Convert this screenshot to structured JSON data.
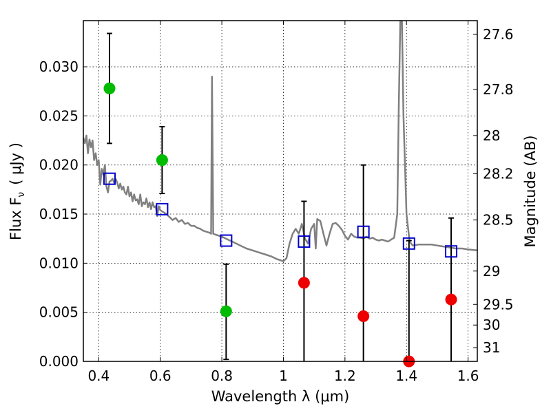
{
  "chart_data": {
    "type": "scatter",
    "xlabel": "Wavelength  λ (μm)",
    "ylabel": "Flux  F",
    "ylabel_subscript": "ν",
    "ylabel_unit": "( μJy )",
    "ylabel_right": "Magnitude (AB)",
    "xlim": [
      0.35,
      1.63
    ],
    "ylim": [
      0.0,
      0.0347
    ],
    "grid": true,
    "x_ticks": [
      {
        "value": 0.4,
        "label": "0.4"
      },
      {
        "value": 0.6,
        "label": "0.6"
      },
      {
        "value": 0.8,
        "label": "0.8"
      },
      {
        "value": 1.0,
        "label": "1"
      },
      {
        "value": 1.2,
        "label": "1.2"
      },
      {
        "value": 1.4,
        "label": "1.4"
      },
      {
        "value": 1.6,
        "label": "1.6"
      }
    ],
    "y_ticks": [
      {
        "value": 0.0,
        "label": "0.000"
      },
      {
        "value": 0.005,
        "label": "0.005"
      },
      {
        "value": 0.01,
        "label": "0.010"
      },
      {
        "value": 0.015,
        "label": "0.015"
      },
      {
        "value": 0.02,
        "label": "0.020"
      },
      {
        "value": 0.025,
        "label": "0.025"
      },
      {
        "value": 0.03,
        "label": "0.030"
      }
    ],
    "right_ticks": [
      {
        "flux": 0.0333,
        "label": "27.6"
      },
      {
        "flux": 0.0277,
        "label": "27.8"
      },
      {
        "flux": 0.023,
        "label": "28"
      },
      {
        "flux": 0.0191,
        "label": "28.2"
      },
      {
        "flux": 0.0144,
        "label": "28.5"
      },
      {
        "flux": 0.0092,
        "label": "29"
      },
      {
        "flux": 0.0058,
        "label": "29.5"
      },
      {
        "flux": 0.0037,
        "label": "30"
      },
      {
        "flux": 0.0014,
        "label": "31"
      }
    ],
    "series": [
      {
        "kind": "model_spectrum",
        "color": "#808080",
        "points": [
          [
            0.35,
            0.0228
          ],
          [
            0.355,
            0.0222
          ],
          [
            0.36,
            0.023
          ],
          [
            0.365,
            0.0212
          ],
          [
            0.37,
            0.0226
          ],
          [
            0.375,
            0.0218
          ],
          [
            0.38,
            0.0225
          ],
          [
            0.385,
            0.0205
          ],
          [
            0.39,
            0.0212
          ],
          [
            0.395,
            0.02
          ],
          [
            0.4,
            0.0205
          ],
          [
            0.405,
            0.018
          ],
          [
            0.41,
            0.0196
          ],
          [
            0.415,
            0.019
          ],
          [
            0.42,
            0.02
          ],
          [
            0.425,
            0.0178
          ],
          [
            0.43,
            0.0172
          ],
          [
            0.435,
            0.0183
          ],
          [
            0.44,
            0.0184
          ],
          [
            0.445,
            0.0186
          ],
          [
            0.45,
            0.0182
          ],
          [
            0.455,
            0.0186
          ],
          [
            0.46,
            0.0182
          ],
          [
            0.465,
            0.0176
          ],
          [
            0.47,
            0.0181
          ],
          [
            0.475,
            0.0175
          ],
          [
            0.48,
            0.0178
          ],
          [
            0.485,
            0.0172
          ],
          [
            0.49,
            0.017
          ],
          [
            0.495,
            0.0178
          ],
          [
            0.5,
            0.0168
          ],
          [
            0.505,
            0.0172
          ],
          [
            0.51,
            0.0163
          ],
          [
            0.515,
            0.017
          ],
          [
            0.52,
            0.0164
          ],
          [
            0.525,
            0.0165
          ],
          [
            0.53,
            0.016
          ],
          [
            0.535,
            0.017
          ],
          [
            0.54,
            0.0158
          ],
          [
            0.545,
            0.0162
          ],
          [
            0.55,
            0.016
          ],
          [
            0.555,
            0.0166
          ],
          [
            0.56,
            0.0157
          ],
          [
            0.565,
            0.0162
          ],
          [
            0.57,
            0.0155
          ],
          [
            0.575,
            0.0162
          ],
          [
            0.58,
            0.0157
          ],
          [
            0.585,
            0.0158
          ],
          [
            0.59,
            0.0148
          ],
          [
            0.595,
            0.0158
          ],
          [
            0.6,
            0.0154
          ],
          [
            0.61,
            0.0152
          ],
          [
            0.62,
            0.015
          ],
          [
            0.63,
            0.0147
          ],
          [
            0.64,
            0.0144
          ],
          [
            0.65,
            0.0146
          ],
          [
            0.66,
            0.0142
          ],
          [
            0.67,
            0.0144
          ],
          [
            0.68,
            0.014
          ],
          [
            0.69,
            0.0141
          ],
          [
            0.7,
            0.0138
          ],
          [
            0.71,
            0.0138
          ],
          [
            0.72,
            0.0136
          ],
          [
            0.73,
            0.0135
          ],
          [
            0.74,
            0.0133
          ],
          [
            0.75,
            0.0132
          ],
          [
            0.76,
            0.0131
          ],
          [
            0.765,
            0.013
          ],
          [
            0.768,
            0.029
          ],
          [
            0.772,
            0.013
          ],
          [
            0.78,
            0.0129
          ],
          [
            0.8,
            0.0127
          ],
          [
            0.82,
            0.0124
          ],
          [
            0.84,
            0.0121
          ],
          [
            0.86,
            0.0118
          ],
          [
            0.88,
            0.0115
          ],
          [
            0.9,
            0.0113
          ],
          [
            0.92,
            0.0111
          ],
          [
            0.94,
            0.0109
          ],
          [
            0.96,
            0.0107
          ],
          [
            0.98,
            0.0104
          ],
          [
            1.0,
            0.0102
          ],
          [
            1.01,
            0.0105
          ],
          [
            1.02,
            0.012
          ],
          [
            1.03,
            0.013
          ],
          [
            1.04,
            0.0135
          ],
          [
            1.05,
            0.013
          ],
          [
            1.06,
            0.014
          ],
          [
            1.07,
            0.0125
          ],
          [
            1.08,
            0.012
          ],
          [
            1.09,
            0.0135
          ],
          [
            1.1,
            0.014
          ],
          [
            1.105,
            0.0115
          ],
          [
            1.11,
            0.0145
          ],
          [
            1.12,
            0.0143
          ],
          [
            1.13,
            0.013
          ],
          [
            1.14,
            0.0118
          ],
          [
            1.15,
            0.013
          ],
          [
            1.16,
            0.014
          ],
          [
            1.17,
            0.0141
          ],
          [
            1.18,
            0.0138
          ],
          [
            1.19,
            0.0134
          ],
          [
            1.2,
            0.0128
          ],
          [
            1.21,
            0.0124
          ],
          [
            1.22,
            0.013
          ],
          [
            1.23,
            0.0127
          ],
          [
            1.24,
            0.0126
          ],
          [
            1.25,
            0.0126
          ],
          [
            1.26,
            0.0125
          ],
          [
            1.27,
            0.0127
          ],
          [
            1.28,
            0.0125
          ],
          [
            1.29,
            0.0126
          ],
          [
            1.3,
            0.0124
          ],
          [
            1.31,
            0.0123
          ],
          [
            1.32,
            0.0124
          ],
          [
            1.33,
            0.0123
          ],
          [
            1.34,
            0.0122
          ],
          [
            1.35,
            0.0124
          ],
          [
            1.36,
            0.0126
          ],
          [
            1.37,
            0.015
          ],
          [
            1.375,
            0.026
          ],
          [
            1.38,
            0.035
          ],
          [
            1.385,
            0.035
          ],
          [
            1.39,
            0.025
          ],
          [
            1.4,
            0.015
          ],
          [
            1.41,
            0.0122
          ],
          [
            1.42,
            0.0118
          ],
          [
            1.44,
            0.0119
          ],
          [
            1.46,
            0.0119
          ],
          [
            1.48,
            0.0119
          ],
          [
            1.5,
            0.0118
          ],
          [
            1.52,
            0.0117
          ],
          [
            1.54,
            0.0116
          ],
          [
            1.56,
            0.0115
          ],
          [
            1.58,
            0.0115
          ],
          [
            1.6,
            0.0114
          ],
          [
            1.63,
            0.0113
          ]
        ]
      },
      {
        "kind": "model_photometry",
        "marker": "open-square",
        "color": "#0000cc",
        "points": [
          {
            "x": 0.435,
            "y": 0.0186
          },
          {
            "x": 0.606,
            "y": 0.0155
          },
          {
            "x": 0.814,
            "y": 0.0123
          },
          {
            "x": 1.067,
            "y": 0.0122
          },
          {
            "x": 1.26,
            "y": 0.0132
          },
          {
            "x": 1.408,
            "y": 0.012
          },
          {
            "x": 1.545,
            "y": 0.0112
          }
        ]
      },
      {
        "kind": "observed_detections",
        "marker": "filled-circle",
        "color": "#00bb00",
        "points": [
          {
            "x": 0.435,
            "y": 0.0278,
            "yerr_low": 0.0222,
            "yerr_high": 0.0334
          },
          {
            "x": 0.606,
            "y": 0.0205,
            "yerr_low": 0.0171,
            "yerr_high": 0.0239
          },
          {
            "x": 0.814,
            "y": 0.0051,
            "yerr_low": 0.0002,
            "yerr_high": 0.0099
          }
        ]
      },
      {
        "kind": "observed_low_sn",
        "marker": "filled-circle",
        "color": "#ee0000",
        "points": [
          {
            "x": 1.067,
            "y": 0.008,
            "yerr_low": 0.0,
            "yerr_high": 0.0163
          },
          {
            "x": 1.26,
            "y": 0.0046,
            "yerr_low": 0.0,
            "yerr_high": 0.02
          },
          {
            "x": 1.408,
            "y": -0.0001,
            "yerr_low": 0.0,
            "yerr_high": 0.0123
          },
          {
            "x": 1.545,
            "y": 0.0063,
            "yerr_low": 0.0,
            "yerr_high": 0.0146
          }
        ]
      }
    ]
  }
}
